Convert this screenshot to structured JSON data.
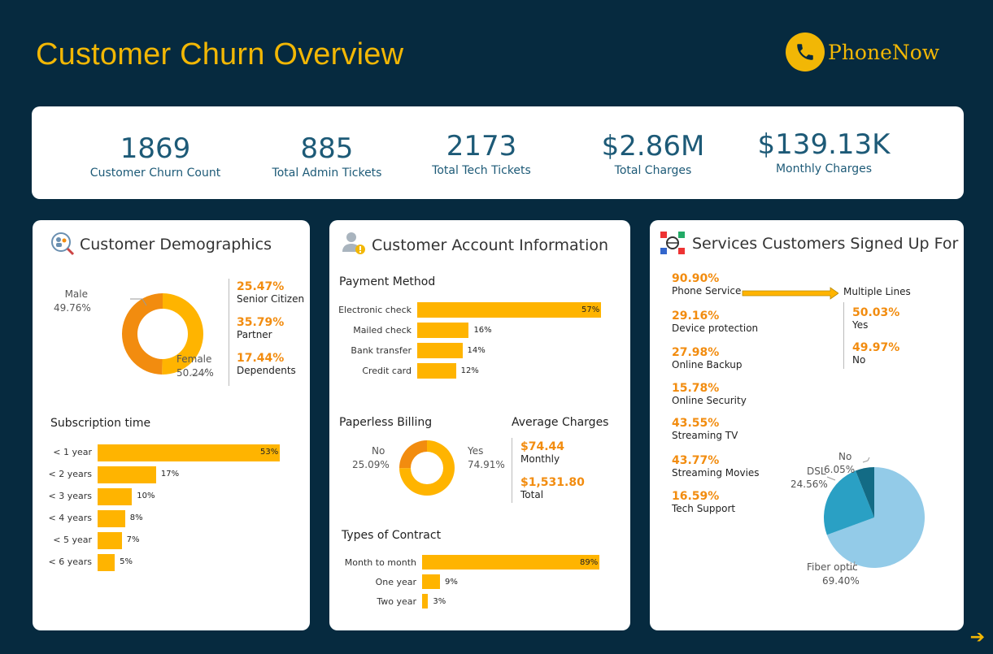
{
  "header": {
    "title": "Customer Churn Overview",
    "brand": "PhoneNow"
  },
  "kpis": [
    {
      "value": "1869",
      "label": "Customer Churn Count"
    },
    {
      "value": "885",
      "label": "Total Admin Tickets"
    },
    {
      "value": "2173",
      "label": "Total Tech Tickets"
    },
    {
      "value": "$2.86M",
      "label": "Total Charges"
    },
    {
      "value": "$139.13K",
      "label": "Monthly Charges"
    }
  ],
  "demographics": {
    "title": "Customer Demographics",
    "gender": {
      "male_label": "Male",
      "male_pct": "49.76%",
      "male_value": 49.76,
      "female_label": "Female",
      "female_pct": "50.24%",
      "female_value": 50.24
    },
    "stats": [
      {
        "pct": "25.47%",
        "label": "Senior Citizen"
      },
      {
        "pct": "35.79%",
        "label": "Partner"
      },
      {
        "pct": "17.44%",
        "label": "Dependents"
      }
    ],
    "subscription": {
      "title": "Subscription time",
      "items": [
        {
          "label": "< 1 year",
          "value": 53,
          "text": "53%"
        },
        {
          "label": "< 2 years",
          "value": 17,
          "text": "17%"
        },
        {
          "label": "< 3 years",
          "value": 10,
          "text": "10%"
        },
        {
          "label": "< 4 years",
          "value": 8,
          "text": "8%"
        },
        {
          "label": "< 5 year",
          "value": 7,
          "text": "7%"
        },
        {
          "label": "< 6 years",
          "value": 5,
          "text": "5%"
        }
      ]
    }
  },
  "account": {
    "title": "Customer Account Information",
    "payment": {
      "title": "Payment Method",
      "items": [
        {
          "label": "Electronic check",
          "value": 57,
          "text": "57%"
        },
        {
          "label": "Mailed check",
          "value": 16,
          "text": "16%"
        },
        {
          "label": "Bank transfer",
          "value": 14,
          "text": "14%"
        },
        {
          "label": "Credit card",
          "value": 12,
          "text": "12%"
        }
      ]
    },
    "paperless": {
      "title": "Paperless Billing",
      "no_label": "No",
      "no_pct": "25.09%",
      "no_value": 25.09,
      "yes_label": "Yes",
      "yes_pct": "74.91%",
      "yes_value": 74.91
    },
    "avg_charges": {
      "title": "Average Charges",
      "monthly_value": "$74.44",
      "monthly_label": "Monthly",
      "total_value": "$1,531.80",
      "total_label": "Total"
    },
    "contract": {
      "title": "Types of Contract",
      "items": [
        {
          "label": "Month to month",
          "value": 89,
          "text": "89%"
        },
        {
          "label": "One year",
          "value": 9,
          "text": "9%"
        },
        {
          "label": "Two year",
          "value": 3,
          "text": "3%"
        }
      ]
    }
  },
  "services": {
    "title": "Services Customers Signed Up For",
    "items": [
      {
        "pct": "90.90%",
        "label": "Phone Service"
      },
      {
        "pct": "29.16%",
        "label": "Device protection"
      },
      {
        "pct": "27.98%",
        "label": "Online Backup"
      },
      {
        "pct": "15.78%",
        "label": "Online Security"
      },
      {
        "pct": "43.55%",
        "label": "Streaming TV"
      },
      {
        "pct": "43.77%",
        "label": "Streaming Movies"
      },
      {
        "pct": "16.59%",
        "label": "Tech Support"
      }
    ],
    "multiple_lines": {
      "title": "Multiple Lines",
      "yes_pct": "50.03%",
      "yes_label": "Yes",
      "no_pct": "49.97%",
      "no_label": "No"
    },
    "internet": {
      "fiber_label": "Fiber optic",
      "fiber_pct": "69.40%",
      "fiber_value": 69.4,
      "dsl_label": "DSL",
      "dsl_pct": "24.56%",
      "dsl_value": 24.56,
      "no_label": "No",
      "no_pct": "6.05%",
      "no_value": 6.05
    }
  },
  "colors": {
    "background": "#062a3f",
    "accent": "#f2b705",
    "bar": "#ffb400",
    "orange": "#f28c0f",
    "kpi_text": "#1d5a77"
  }
}
